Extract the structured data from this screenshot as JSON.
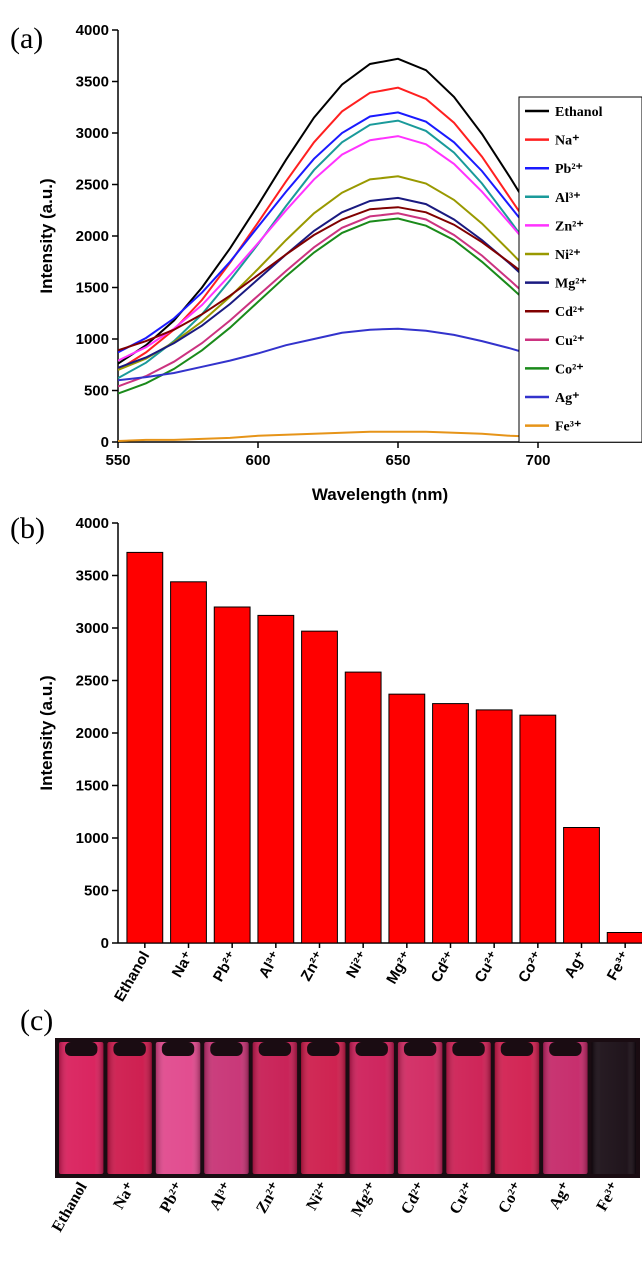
{
  "chart_data": [
    {
      "type": "line",
      "panel_label": "(a)",
      "x_label": "Wavelength (nm)",
      "y_label": "Intensity (a.u.)",
      "x": [
        550,
        560,
        570,
        580,
        590,
        600,
        610,
        620,
        630,
        640,
        650,
        660,
        670,
        680,
        690,
        700,
        710,
        720,
        730
      ],
      "xlim": [
        550,
        735
      ],
      "xticks": [
        550,
        600,
        650,
        700
      ],
      "ylim": [
        0,
        4000
      ],
      "yticks": [
        0,
        500,
        1000,
        1500,
        2000,
        2500,
        3000,
        3500,
        4000
      ],
      "legend": "right",
      "series": [
        {
          "name": "Ethanol",
          "color": "#000000",
          "values": [
            760,
            940,
            1180,
            1500,
            1880,
            2300,
            2740,
            3150,
            3470,
            3670,
            3720,
            3610,
            3350,
            2990,
            2570,
            2130,
            1720,
            1360,
            1080
          ]
        },
        {
          "name": "Na⁺",
          "color": "#ff2020",
          "values": [
            700,
            870,
            1090,
            1380,
            1740,
            2130,
            2530,
            2910,
            3210,
            3390,
            3440,
            3330,
            3100,
            2770,
            2370,
            1970,
            1590,
            1260,
            990
          ]
        },
        {
          "name": "Pb²⁺",
          "color": "#1a1aff",
          "values": [
            870,
            1010,
            1200,
            1450,
            1750,
            2090,
            2430,
            2750,
            3000,
            3160,
            3200,
            3110,
            2910,
            2630,
            2290,
            1950,
            1630,
            1350,
            1120
          ]
        },
        {
          "name": "Al³⁺",
          "color": "#1a9a9a",
          "values": [
            620,
            770,
            980,
            1240,
            1570,
            1920,
            2290,
            2640,
            2910,
            3080,
            3120,
            3020,
            2810,
            2510,
            2150,
            1780,
            1430,
            1130,
            890
          ]
        },
        {
          "name": "Zn²⁺",
          "color": "#ff33ff",
          "values": [
            790,
            920,
            1100,
            1330,
            1620,
            1930,
            2250,
            2550,
            2790,
            2930,
            2970,
            2890,
            2700,
            2430,
            2120,
            1800,
            1500,
            1240,
            1020
          ]
        },
        {
          "name": "Ni²⁺",
          "color": "#999900",
          "values": [
            700,
            810,
            970,
            1170,
            1410,
            1680,
            1960,
            2220,
            2420,
            2550,
            2580,
            2510,
            2350,
            2120,
            1850,
            1570,
            1310,
            1080,
            900
          ]
        },
        {
          "name": "Mg²⁺",
          "color": "#1a1a80",
          "values": [
            720,
            820,
            960,
            1130,
            1340,
            1580,
            1820,
            2050,
            2230,
            2340,
            2370,
            2310,
            2160,
            1960,
            1730,
            1480,
            1260,
            1060,
            900
          ]
        },
        {
          "name": "Cd²⁺",
          "color": "#800000",
          "values": [
            890,
            980,
            1090,
            1240,
            1420,
            1620,
            1820,
            2010,
            2160,
            2260,
            2280,
            2230,
            2110,
            1940,
            1740,
            1530,
            1340,
            1170,
            1040
          ]
        },
        {
          "name": "Cu²⁺",
          "color": "#cc3380",
          "values": [
            540,
            640,
            780,
            960,
            1180,
            1420,
            1660,
            1890,
            2080,
            2190,
            2220,
            2160,
            2010,
            1810,
            1570,
            1320,
            1090,
            880,
            720
          ]
        },
        {
          "name": "Co²⁺",
          "color": "#1a8a1a",
          "values": [
            470,
            570,
            710,
            890,
            1110,
            1360,
            1610,
            1840,
            2030,
            2140,
            2170,
            2100,
            1960,
            1750,
            1510,
            1260,
            1020,
            820,
            650
          ]
        },
        {
          "name": "Ag⁺",
          "color": "#3333cc",
          "values": [
            600,
            630,
            670,
            730,
            790,
            860,
            940,
            1000,
            1060,
            1090,
            1100,
            1080,
            1040,
            980,
            910,
            830,
            760,
            700,
            650
          ]
        },
        {
          "name": "Fe³⁺",
          "color": "#e69419",
          "values": [
            10,
            20,
            20,
            30,
            40,
            60,
            70,
            80,
            90,
            100,
            100,
            100,
            90,
            80,
            60,
            50,
            40,
            30,
            20
          ]
        }
      ]
    },
    {
      "type": "bar",
      "panel_label": "(b)",
      "y_label": "Intensity (a.u.)",
      "categories": [
        "Ethanol",
        "Na⁺",
        "Pb²⁺",
        "Al³⁺",
        "Zn²⁺",
        "Ni²⁺",
        "Mg²⁺",
        "Cd²⁺",
        "Cu²⁺",
        "Co²⁺",
        "Ag⁺",
        "Fe³⁺"
      ],
      "values": [
        3720,
        3440,
        3200,
        3120,
        2970,
        2580,
        2370,
        2280,
        2220,
        2170,
        1100,
        100
      ],
      "color": "#ff0000",
      "ylim": [
        0,
        4000
      ],
      "yticks": [
        0,
        500,
        1000,
        1500,
        2000,
        2500,
        3000,
        3500,
        4000
      ]
    }
  ],
  "photo_panel": {
    "panel_label": "(c)",
    "labels": [
      "Ethanol",
      "Na⁺",
      "Pb²⁺",
      "Al³⁺",
      "Zn²⁺",
      "Ni²⁺",
      "Mg²⁺",
      "Cd²⁺",
      "Cu²⁺",
      "Co²⁺",
      "Ag⁺",
      "Fe³⁺"
    ]
  }
}
